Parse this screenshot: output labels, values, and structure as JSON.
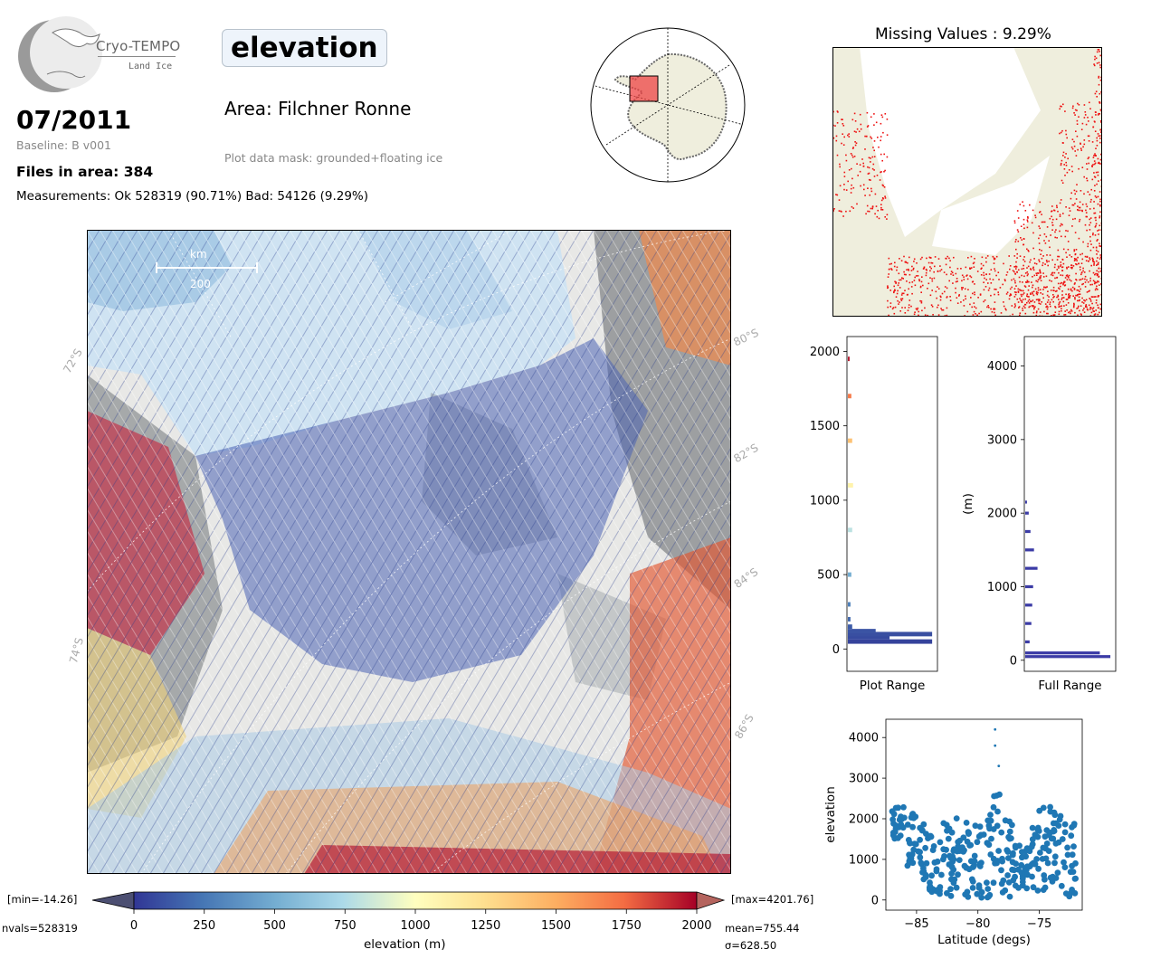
{
  "logo": {
    "title": "Cryo-TEMPO",
    "subtitle": "Land Ice"
  },
  "header": {
    "variable": "elevation",
    "area_label": "Area: Filchner Ronne",
    "mask_label": "Plot data mask: grounded+floating ice",
    "month": "07/2011",
    "baseline": "Baseline: B v001",
    "files": "Files in area: 384",
    "measurements": "Measurements: Ok 528319 (90.71%) Bad: 54126 (9.29%)"
  },
  "map": {
    "scale_unit": "km",
    "scale_value": "200",
    "lat_labels_left": [
      "72°S",
      "74°S"
    ],
    "lat_labels_right": [
      "80°S",
      "82°S",
      "84°S",
      "86°S"
    ]
  },
  "colorbar": {
    "min_label": "[min=-14.26]",
    "max_label": "[max=4201.76]",
    "nvals": "nvals=528319",
    "mean": "mean=755.44",
    "sigma": "σ=628.50",
    "xlabel": "elevation (m)",
    "ticks": [
      "0",
      "250",
      "500",
      "750",
      "1000",
      "1250",
      "1500",
      "1750",
      "2000"
    ]
  },
  "missing": {
    "title": "Missing Values : 9.29%"
  },
  "colors": {
    "ocean": "#cfe3f2",
    "land": "#efeedd",
    "missing": "#ee1111",
    "hist": "#3b3ba6",
    "scatter": "#1f77b4"
  },
  "chart_data": [
    {
      "type": "bar",
      "name": "plot-range-histogram",
      "xlabel": "Plot Range",
      "ylim": [
        -150,
        2100
      ],
      "yticks": [
        "0",
        "500",
        "1000",
        "1500",
        "2000"
      ],
      "bins": [
        {
          "y": 50,
          "count": 0.97
        },
        {
          "y": 80,
          "count": 0.48
        },
        {
          "y": 100,
          "count": 0.97
        },
        {
          "y": 120,
          "count": 0.32
        },
        {
          "y": 150,
          "count": 0.05
        },
        {
          "y": 200,
          "count": 0.03
        },
        {
          "y": 300,
          "count": 0.03
        },
        {
          "y": 500,
          "count": 0.04
        },
        {
          "y": 800,
          "count": 0.05
        },
        {
          "y": 1100,
          "count": 0.06
        },
        {
          "y": 1400,
          "count": 0.05
        },
        {
          "y": 1700,
          "count": 0.04
        },
        {
          "y": 1950,
          "count": 0.02
        }
      ]
    },
    {
      "type": "bar",
      "name": "full-range-histogram",
      "xlabel": "Full Range",
      "ylabel": "(m)",
      "ylim": [
        -150,
        4400
      ],
      "yticks": [
        "0",
        "1000",
        "2000",
        "3000",
        "4000"
      ],
      "bins": [
        {
          "y": 50,
          "count": 0.97
        },
        {
          "y": 100,
          "count": 0.85
        },
        {
          "y": 250,
          "count": 0.05
        },
        {
          "y": 500,
          "count": 0.07
        },
        {
          "y": 750,
          "count": 0.08
        },
        {
          "y": 1000,
          "count": 0.09
        },
        {
          "y": 1250,
          "count": 0.14
        },
        {
          "y": 1500,
          "count": 0.1
        },
        {
          "y": 1750,
          "count": 0.06
        },
        {
          "y": 2000,
          "count": 0.04
        },
        {
          "y": 2150,
          "count": 0.02
        }
      ]
    },
    {
      "type": "scatter",
      "name": "elevation-vs-latitude",
      "xlabel": "Latitude (degs)",
      "ylabel": "elevation",
      "xlim": [
        -87.5,
        -71.5
      ],
      "ylim": [
        -250,
        4450
      ],
      "xticks": [
        "−85",
        "−80",
        "−75"
      ],
      "yticks": [
        "0",
        "1000",
        "2000",
        "3000",
        "4000"
      ],
      "envelope": {
        "lat": [
          -86.5,
          -85.5,
          -84.5,
          -83.5,
          -82.5,
          -81.5,
          -80.5,
          -79.5,
          -78.5,
          -77.5,
          -76.5,
          -75.5,
          -74.5,
          -73.5,
          -72.5
        ],
        "upper": [
          2300,
          2250,
          1900,
          1800,
          1950,
          2100,
          1950,
          2000,
          2600,
          2100,
          1500,
          1800,
          2300,
          2350,
          1900
        ],
        "lower": [
          1500,
          800,
          400,
          150,
          80,
          60,
          60,
          60,
          60,
          80,
          100,
          150,
          200,
          300,
          50
        ]
      },
      "outliers": [
        {
          "lat": -78.6,
          "elev": 4200
        },
        {
          "lat": -78.6,
          "elev": 3800
        },
        {
          "lat": -78.3,
          "elev": 3300
        }
      ]
    }
  ]
}
